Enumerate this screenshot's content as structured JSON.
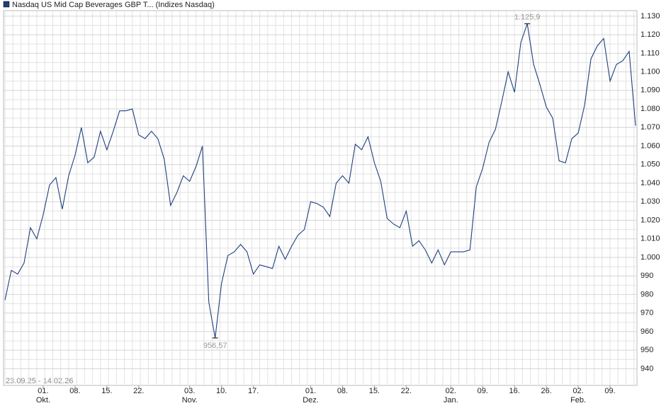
{
  "chart_data": {
    "type": "line",
    "legend_label": "Nasdaq US Mid Cap Beverages GBP T... (Indizes Nasdaq)",
    "date_range": "23.09.25 - 14.02.26",
    "color": "#1f3f7f",
    "grid": true,
    "series": [
      {
        "name": "Nasdaq US Mid Cap Beverages GBP T... (Indizes Nasdaq)",
        "color": "#1f3f7f",
        "values": [
          977,
          993,
          991,
          997,
          1016,
          1010,
          1023,
          1039,
          1043,
          1026,
          1044,
          1055,
          1070,
          1051,
          1054,
          1068,
          1058,
          1068,
          1079,
          1079,
          1080,
          1066,
          1064,
          1068,
          1064,
          1053,
          1028,
          1035,
          1044,
          1041,
          1049,
          1060,
          976,
          956.57,
          986,
          1001,
          1003,
          1007,
          1003,
          991,
          996,
          995,
          994,
          1006,
          999,
          1006,
          1012,
          1015,
          1030,
          1029,
          1027,
          1022,
          1040,
          1044,
          1040,
          1061,
          1058,
          1065,
          1051,
          1041,
          1021,
          1018,
          1016,
          1025,
          1006,
          1009,
          1004,
          997,
          1004,
          996,
          1003,
          1003,
          1003,
          1004,
          1038,
          1048,
          1062,
          1069,
          1084,
          1100,
          1089,
          1116,
          1125.9,
          1104,
          1093,
          1081,
          1075,
          1052,
          1051,
          1064,
          1067,
          1082,
          1107,
          1114,
          1118,
          1095,
          1104,
          1106,
          1111,
          1071
        ],
        "value_labels": [
          null,
          null,
          null,
          null,
          null,
          null,
          null,
          null,
          null,
          null,
          null,
          null,
          null,
          null,
          null,
          null,
          null,
          null,
          null,
          null,
          null,
          null,
          null,
          null,
          null,
          null,
          null,
          null,
          null,
          null,
          null,
          null,
          null,
          "956,57",
          null,
          null,
          null,
          null,
          null,
          null,
          null,
          null,
          null,
          null,
          null,
          null,
          null,
          null,
          null,
          null,
          null,
          null,
          null,
          null,
          null,
          null,
          null,
          null,
          null,
          null,
          null,
          null,
          null,
          null,
          null,
          null,
          null,
          null,
          null,
          null,
          null,
          null,
          null,
          null,
          null,
          null,
          null,
          null,
          null,
          null,
          null,
          null,
          "1.125,9",
          null,
          null,
          null,
          null,
          null,
          null,
          null,
          null,
          null,
          null,
          null,
          null,
          null,
          null,
          null,
          null,
          null
        ]
      }
    ],
    "xlim": [
      0,
      99
    ],
    "xticks": [
      {
        "value": 6,
        "label": "01."
      },
      {
        "value": 11,
        "label": "08."
      },
      {
        "value": 16,
        "label": "15."
      },
      {
        "value": 21,
        "label": "22."
      },
      {
        "value": 29,
        "label": "03."
      },
      {
        "value": 34,
        "label": "10."
      },
      {
        "value": 39,
        "label": "17."
      },
      {
        "value": 48,
        "label": "01."
      },
      {
        "value": 53,
        "label": "08."
      },
      {
        "value": 58,
        "label": "15."
      },
      {
        "value": 63,
        "label": "22."
      },
      {
        "value": 70,
        "label": "02."
      },
      {
        "value": 75,
        "label": "09."
      },
      {
        "value": 80,
        "label": "16."
      },
      {
        "value": 85,
        "label": "26."
      },
      {
        "value": 90,
        "label": "02."
      },
      {
        "value": 95,
        "label": "09."
      }
    ],
    "months": [
      {
        "value": 6,
        "label": "Okt."
      },
      {
        "value": 29,
        "label": "Nov."
      },
      {
        "value": 48,
        "label": "Dez."
      },
      {
        "value": 70,
        "label": "Jan."
      },
      {
        "value": 90,
        "label": "Feb."
      }
    ],
    "ylim": [
      931,
      1133
    ],
    "yticks": [
      {
        "value": 940,
        "label": "940"
      },
      {
        "value": 950,
        "label": "950"
      },
      {
        "value": 960,
        "label": "960"
      },
      {
        "value": 970,
        "label": "970"
      },
      {
        "value": 980,
        "label": "980"
      },
      {
        "value": 990,
        "label": "990"
      },
      {
        "value": 1000,
        "label": "1.000"
      },
      {
        "value": 1010,
        "label": "1.010"
      },
      {
        "value": 1020,
        "label": "1.020"
      },
      {
        "value": 1030,
        "label": "1.030"
      },
      {
        "value": 1040,
        "label": "1.040"
      },
      {
        "value": 1050,
        "label": "1.050"
      },
      {
        "value": 1060,
        "label": "1.060"
      },
      {
        "value": 1070,
        "label": "1.070"
      },
      {
        "value": 1080,
        "label": "1.080"
      },
      {
        "value": 1090,
        "label": "1.090"
      },
      {
        "value": 1100,
        "label": "1.100"
      },
      {
        "value": 1110,
        "label": "1.110"
      },
      {
        "value": 1120,
        "label": "1.120"
      },
      {
        "value": 1130,
        "label": "1.130"
      }
    ]
  }
}
